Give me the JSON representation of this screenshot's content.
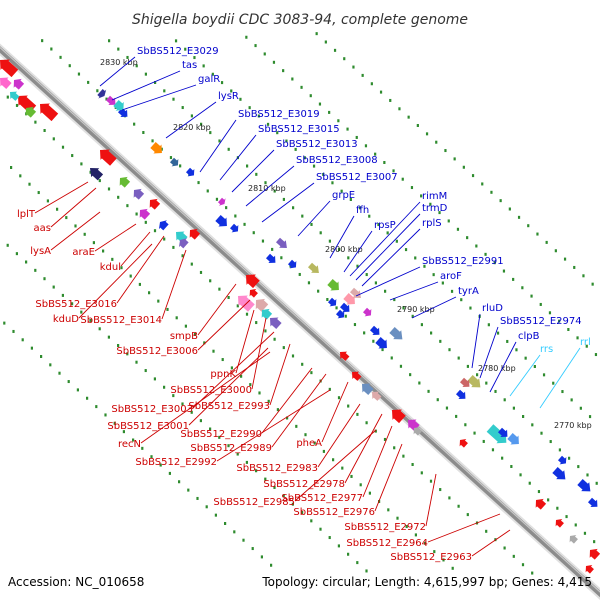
{
  "title": "Shigella boydii CDC 3083-94, complete genome",
  "footer": {
    "accession": "Accession: NC_010658",
    "summary": "Topology: circular; Length: 4,615,997 bp; Genes: 4,415"
  },
  "colors": {
    "backbone": "#8c8c8c",
    "forward_label": "#0000cc",
    "reverse_label": "#cc0000",
    "rna_label": "#33ccff",
    "tick": "#2e8b2e"
  },
  "scale_marks": [
    "2830 kbp",
    "2820 kbp",
    "2810 kbp",
    "2800 kbp",
    "2790 kbp",
    "2780 kbp",
    "2770 kbp"
  ],
  "upper_labels": [
    "SbBS512_E3029",
    "tas",
    "galR",
    "lysR",
    "SbBS512_E3019",
    "SbBS512_E3015",
    "SbBS512_E3013",
    "SbBS512_E3008",
    "SbBS512_E3007",
    "grpE",
    "ffh",
    "rpsP",
    "rimM",
    "trmD",
    "rplS",
    "SbBS512_E2991",
    "aroF",
    "tyrA",
    "rluD",
    "SbBS512_E2974",
    "clpB"
  ],
  "rna_labels": [
    "rrs",
    "rrl"
  ],
  "lower_labels": [
    "lplT",
    "aas",
    "lysA",
    "araE",
    "kdul",
    "SbBS512_E3016",
    "kduD",
    "SbBS512_E3014",
    "smpB",
    "SbBS512_E3006",
    "ppnK",
    "SbBS512_E3000",
    "SbBS512_E3003",
    "SbBS512_E2993",
    "SbBS512_E3001",
    "recN",
    "SbBS512_E2990",
    "SbBS512_E2989",
    "pheA",
    "SbBS512_E2992",
    "SbBS512_E2983",
    "SbBS512_E2978",
    "SbBS512_E2985",
    "SbBS512_E2977",
    "SbBS512_E2976",
    "SbBS512_E2972",
    "SbBS512_E2964",
    "SbBS512_E2963"
  ]
}
